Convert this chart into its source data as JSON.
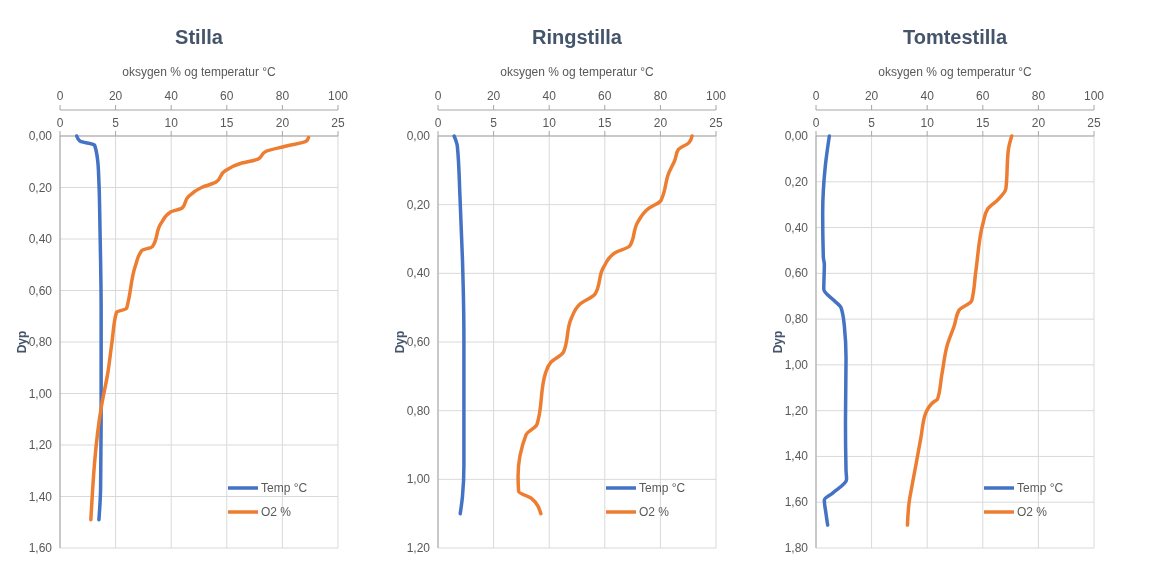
{
  "chart_data": [
    {
      "type": "line",
      "title": "Stilla",
      "xlabel": "oksygen % og temperatur °C",
      "ylabel": "Dyp",
      "grid": true,
      "legend": "bottom right",
      "line_style": "solid",
      "marker": "none",
      "xlim": [
        0,
        25
      ],
      "xticks": [
        0,
        5,
        10,
        15,
        20,
        25
      ],
      "x2lim": [
        0,
        100
      ],
      "x2ticks": [
        0,
        20,
        40,
        60,
        80,
        100
      ],
      "ylim": [
        1.6,
        0
      ],
      "yticks": [
        {
          "value": 0,
          "label": "0,00"
        },
        {
          "value": 0.2,
          "label": "0,20"
        },
        {
          "value": 0.4,
          "label": "0,40"
        },
        {
          "value": 0.6,
          "label": "0,60"
        },
        {
          "value": 0.8,
          "label": "0,80"
        },
        {
          "value": 1.0,
          "label": "1,00"
        },
        {
          "value": 1.2,
          "label": "1,20"
        },
        {
          "value": 1.4,
          "label": "1,40"
        },
        {
          "value": 1.6,
          "label": "1,60"
        }
      ],
      "series": [
        {
          "name": "Temp °C",
          "color": "#4472c4",
          "x": [
            1.5,
            1.8,
            3.1,
            3.4,
            3.5,
            3.6,
            3.7,
            3.7,
            3.65,
            3.5
          ],
          "values": [
            0,
            0.02,
            0.035,
            0.1,
            0.18,
            0.37,
            0.68,
            1.05,
            1.37,
            1.49
          ]
        },
        {
          "name": "O2 %",
          "color": "#ed7d31",
          "axis": "x2",
          "x": [
            89.4,
            88.6,
            81,
            74,
            71.2,
            65.4,
            59.4,
            56,
            50.9,
            46.2,
            43.9,
            39.8,
            36.3,
            33.2,
            29.4,
            27.1,
            24.4,
            23.9,
            20.3,
            18.7,
            17.2,
            14.9,
            11.1
          ],
          "values": [
            0.006,
            0.02,
            0.04,
            0.06,
            0.09,
            0.105,
            0.135,
            0.18,
            0.2,
            0.235,
            0.28,
            0.295,
            0.34,
            0.43,
            0.445,
            0.505,
            0.65,
            0.67,
            0.685,
            0.8,
            0.92,
            1.05,
            1.49
          ]
        }
      ]
    },
    {
      "type": "line",
      "title": "Ringstilla",
      "xlabel": "oksygen % og temperatur °C",
      "ylabel": "Dyp",
      "grid": true,
      "legend": "bottom right",
      "line_style": "solid",
      "marker": "none",
      "xlim": [
        0,
        25
      ],
      "xticks": [
        0,
        5,
        10,
        15,
        20,
        25
      ],
      "x2lim": [
        0,
        100
      ],
      "x2ticks": [
        0,
        20,
        40,
        60,
        80,
        100
      ],
      "ylim": [
        1.2,
        0
      ],
      "yticks": [
        {
          "value": 0,
          "label": "0,00"
        },
        {
          "value": 0.2,
          "label": "0,20"
        },
        {
          "value": 0.4,
          "label": "0,40"
        },
        {
          "value": 0.6,
          "label": "0,60"
        },
        {
          "value": 0.8,
          "label": "0,80"
        },
        {
          "value": 1.0,
          "label": "1,00"
        },
        {
          "value": 1.2,
          "label": "1,20"
        }
      ],
      "series": [
        {
          "name": "Temp °C",
          "color": "#4472c4",
          "x": [
            1.45,
            1.74,
            1.98,
            2.2,
            2.33,
            2.33,
            2.2,
            2.0
          ],
          "values": [
            0,
            0.03,
            0.18,
            0.36,
            0.59,
            0.96,
            1.05,
            1.1
          ]
        },
        {
          "name": "O2 %",
          "color": "#ed7d31",
          "axis": "x2",
          "x": [
            91.4,
            90.2,
            86.4,
            85.2,
            82.9,
            80.6,
            80,
            75.9,
            71.9,
            69,
            63.7,
            59.7,
            56.5,
            51,
            48,
            45.1,
            40.5,
            38.7,
            35.6,
            31.7,
            28.8,
            29,
            33.5,
            37
          ],
          "values": [
            0,
            0.02,
            0.04,
            0.07,
            0.11,
            0.18,
            0.19,
            0.21,
            0.25,
            0.32,
            0.34,
            0.38,
            0.46,
            0.49,
            0.53,
            0.63,
            0.66,
            0.69,
            0.84,
            0.87,
            0.99,
            1.035,
            1.055,
            1.1
          ]
        }
      ]
    },
    {
      "type": "line",
      "title": "Tomtestilla",
      "xlabel": "oksygen % og temperatur °C",
      "ylabel": "Dyp",
      "grid": true,
      "legend": "bottom right",
      "line_style": "solid",
      "marker": "none",
      "xlim": [
        0,
        25
      ],
      "xticks": [
        0,
        5,
        10,
        15,
        20,
        25
      ],
      "x2lim": [
        0,
        100
      ],
      "x2ticks": [
        0,
        20,
        40,
        60,
        80,
        100
      ],
      "ylim": [
        1.8,
        0
      ],
      "yticks": [
        {
          "value": 0,
          "label": "0,00"
        },
        {
          "value": 0.2,
          "label": "0,20"
        },
        {
          "value": 0.4,
          "label": "0,40"
        },
        {
          "value": 0.6,
          "label": "0,60"
        },
        {
          "value": 0.8,
          "label": "0,80"
        },
        {
          "value": 1.0,
          "label": "1,00"
        },
        {
          "value": 1.2,
          "label": "1,20"
        },
        {
          "value": 1.4,
          "label": "1,40"
        },
        {
          "value": 1.6,
          "label": "1,60"
        },
        {
          "value": 1.8,
          "label": "1,80"
        }
      ],
      "series": [
        {
          "name": "Temp °C",
          "color": "#4472c4",
          "x": [
            1.2,
            0.84,
            0.6,
            0.66,
            0.75,
            0.7,
            1.65,
            2.25,
            2.55,
            2.7,
            2.65,
            2.7,
            2.75,
            1.5,
            0.75,
            0.9,
            1.05
          ],
          "values": [
            0,
            0.13,
            0.34,
            0.53,
            0.56,
            0.67,
            0.72,
            0.75,
            0.83,
            0.97,
            1.25,
            1.46,
            1.5,
            1.56,
            1.59,
            1.65,
            1.7
          ]
        },
        {
          "name": "O2 %",
          "color": "#ed7d31",
          "axis": "x2",
          "x": [
            70.4,
            69.2,
            68.3,
            65.3,
            61.7,
            60.1,
            57.5,
            56,
            51.5,
            49.7,
            47.3,
            45.3,
            43.7,
            42.5,
            39.5,
            37.7,
            36.2,
            34.5,
            33.5,
            32.9
          ],
          "values": [
            0,
            0.06,
            0.23,
            0.28,
            0.32,
            0.38,
            0.59,
            0.72,
            0.76,
            0.83,
            0.91,
            1.04,
            1.15,
            1.16,
            1.21,
            1.32,
            1.42,
            1.53,
            1.6,
            1.7
          ]
        }
      ]
    }
  ]
}
